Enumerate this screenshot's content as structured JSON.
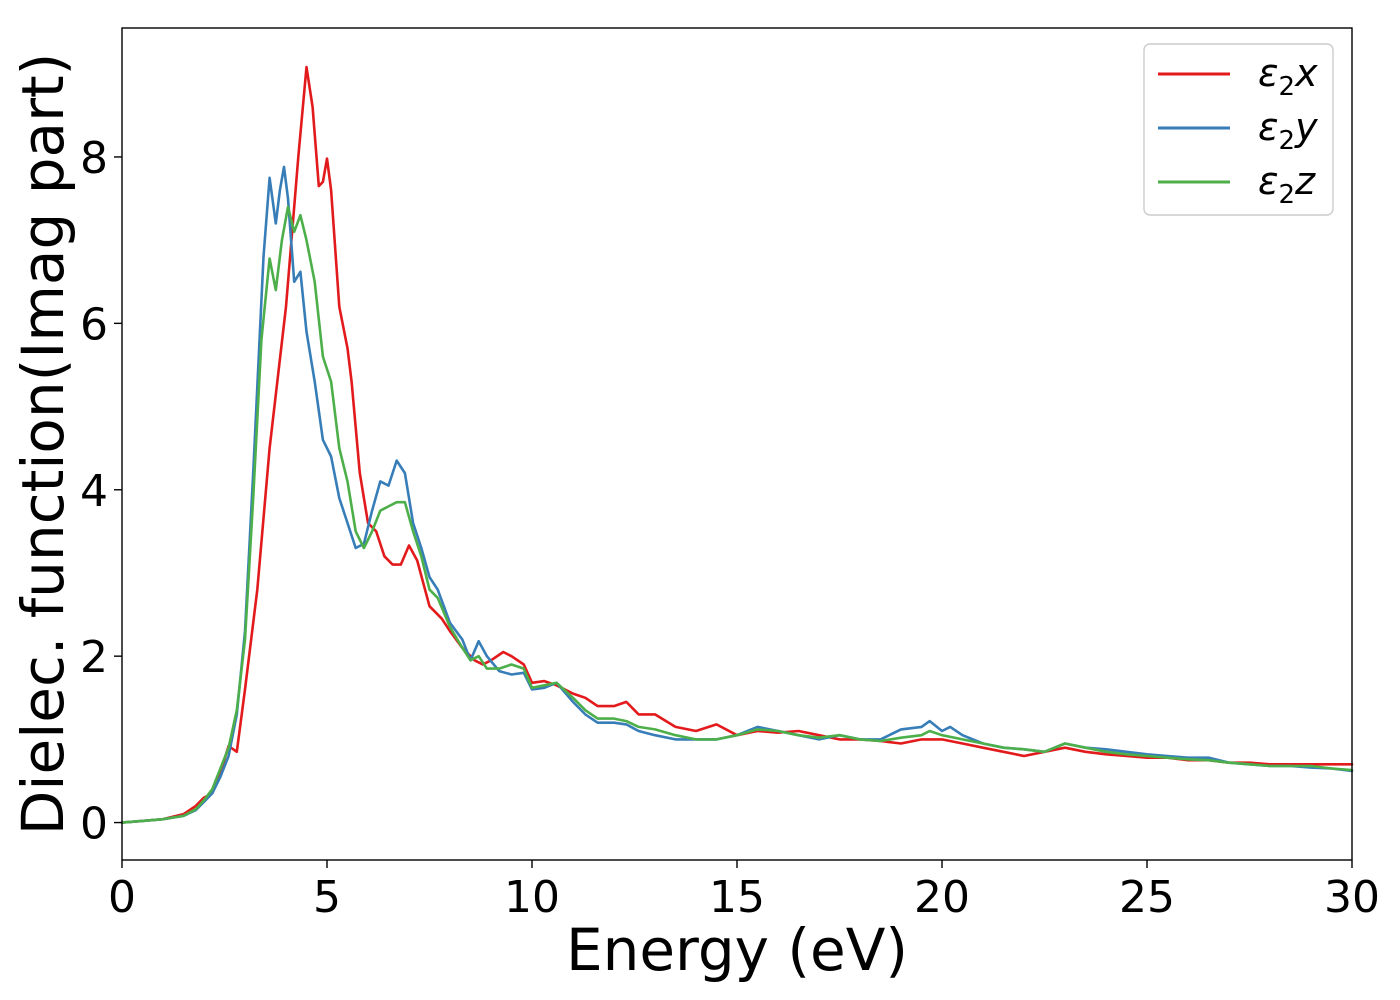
{
  "chart_data": {
    "type": "line",
    "xlabel": "Energy (eV)",
    "ylabel": "Dielec. function(Imag part)",
    "xlim": [
      0,
      30
    ],
    "ylim": [
      -0.45,
      9.55
    ],
    "xticks": [
      0,
      5,
      10,
      15,
      20,
      25,
      30
    ],
    "yticks": [
      0,
      2,
      4,
      6,
      8
    ],
    "grid": false,
    "legend_position": "top-right",
    "series": [
      {
        "name": "ε2x",
        "legend_base": "ε",
        "legend_sub": "2",
        "legend_tail": "x",
        "color": "#e31a1c",
        "points": [
          [
            0,
            0
          ],
          [
            0.5,
            0.02
          ],
          [
            1,
            0.04
          ],
          [
            1.5,
            0.1
          ],
          [
            1.8,
            0.2
          ],
          [
            2,
            0.3
          ],
          [
            2.2,
            0.35
          ],
          [
            2.4,
            0.6
          ],
          [
            2.6,
            0.92
          ],
          [
            2.8,
            0.85
          ],
          [
            3,
            1.6
          ],
          [
            3.3,
            2.8
          ],
          [
            3.6,
            4.5
          ],
          [
            4,
            6.2
          ],
          [
            4.3,
            8.0
          ],
          [
            4.5,
            9.08
          ],
          [
            4.65,
            8.6
          ],
          [
            4.8,
            7.65
          ],
          [
            4.9,
            7.7
          ],
          [
            5.0,
            7.98
          ],
          [
            5.1,
            7.6
          ],
          [
            5.3,
            6.2
          ],
          [
            5.5,
            5.7
          ],
          [
            5.6,
            5.3
          ],
          [
            5.8,
            4.2
          ],
          [
            6.0,
            3.6
          ],
          [
            6.2,
            3.5
          ],
          [
            6.4,
            3.2
          ],
          [
            6.6,
            3.1
          ],
          [
            6.8,
            3.1
          ],
          [
            7.0,
            3.33
          ],
          [
            7.2,
            3.15
          ],
          [
            7.5,
            2.6
          ],
          [
            7.8,
            2.45
          ],
          [
            8.0,
            2.3
          ],
          [
            8.3,
            2.1
          ],
          [
            8.6,
            1.95
          ],
          [
            8.8,
            1.9
          ],
          [
            9.0,
            1.95
          ],
          [
            9.3,
            2.05
          ],
          [
            9.5,
            2.0
          ],
          [
            9.8,
            1.9
          ],
          [
            10,
            1.68
          ],
          [
            10.3,
            1.7
          ],
          [
            10.6,
            1.65
          ],
          [
            11,
            1.55
          ],
          [
            11.3,
            1.5
          ],
          [
            11.6,
            1.4
          ],
          [
            12,
            1.4
          ],
          [
            12.3,
            1.45
          ],
          [
            12.6,
            1.3
          ],
          [
            13,
            1.3
          ],
          [
            13.5,
            1.15
          ],
          [
            14,
            1.1
          ],
          [
            14.5,
            1.18
          ],
          [
            15,
            1.05
          ],
          [
            15.5,
            1.1
          ],
          [
            16,
            1.08
          ],
          [
            16.5,
            1.1
          ],
          [
            17,
            1.05
          ],
          [
            17.5,
            1.0
          ],
          [
            18,
            1.0
          ],
          [
            18.5,
            0.98
          ],
          [
            19,
            0.95
          ],
          [
            19.5,
            1.0
          ],
          [
            20,
            1.0
          ],
          [
            20.5,
            0.95
          ],
          [
            21,
            0.9
          ],
          [
            21.5,
            0.85
          ],
          [
            22,
            0.8
          ],
          [
            22.5,
            0.85
          ],
          [
            23,
            0.9
          ],
          [
            23.5,
            0.85
          ],
          [
            24,
            0.82
          ],
          [
            24.5,
            0.8
          ],
          [
            25,
            0.78
          ],
          [
            25.5,
            0.78
          ],
          [
            26,
            0.75
          ],
          [
            26.5,
            0.75
          ],
          [
            27,
            0.72
          ],
          [
            27.5,
            0.72
          ],
          [
            28,
            0.7
          ],
          [
            28.5,
            0.7
          ],
          [
            29,
            0.7
          ],
          [
            29.5,
            0.7
          ],
          [
            30,
            0.7
          ]
        ]
      },
      {
        "name": "ε2y",
        "legend_base": "ε",
        "legend_sub": "2",
        "legend_tail": "y",
        "color": "#377eb8",
        "points": [
          [
            0,
            0
          ],
          [
            0.5,
            0.02
          ],
          [
            1,
            0.04
          ],
          [
            1.5,
            0.08
          ],
          [
            1.8,
            0.15
          ],
          [
            2,
            0.25
          ],
          [
            2.2,
            0.35
          ],
          [
            2.4,
            0.55
          ],
          [
            2.6,
            0.8
          ],
          [
            2.8,
            1.3
          ],
          [
            3,
            2.3
          ],
          [
            3.2,
            4.2
          ],
          [
            3.45,
            6.8
          ],
          [
            3.6,
            7.75
          ],
          [
            3.75,
            7.2
          ],
          [
            3.85,
            7.6
          ],
          [
            3.95,
            7.88
          ],
          [
            4.05,
            7.5
          ],
          [
            4.2,
            6.5
          ],
          [
            4.35,
            6.62
          ],
          [
            4.5,
            5.9
          ],
          [
            4.7,
            5.3
          ],
          [
            4.9,
            4.6
          ],
          [
            5.1,
            4.4
          ],
          [
            5.3,
            3.9
          ],
          [
            5.5,
            3.6
          ],
          [
            5.7,
            3.3
          ],
          [
            5.9,
            3.35
          ],
          [
            6.1,
            3.75
          ],
          [
            6.3,
            4.1
          ],
          [
            6.5,
            4.05
          ],
          [
            6.7,
            4.35
          ],
          [
            6.9,
            4.2
          ],
          [
            7.1,
            3.6
          ],
          [
            7.3,
            3.3
          ],
          [
            7.5,
            2.95
          ],
          [
            7.7,
            2.8
          ],
          [
            8.0,
            2.4
          ],
          [
            8.3,
            2.2
          ],
          [
            8.5,
            1.95
          ],
          [
            8.7,
            2.18
          ],
          [
            8.9,
            2.0
          ],
          [
            9.2,
            1.82
          ],
          [
            9.5,
            1.78
          ],
          [
            9.8,
            1.8
          ],
          [
            10,
            1.6
          ],
          [
            10.3,
            1.62
          ],
          [
            10.6,
            1.68
          ],
          [
            11,
            1.45
          ],
          [
            11.3,
            1.3
          ],
          [
            11.6,
            1.2
          ],
          [
            12,
            1.2
          ],
          [
            12.3,
            1.18
          ],
          [
            12.6,
            1.1
          ],
          [
            13,
            1.05
          ],
          [
            13.5,
            1.0
          ],
          [
            14,
            1.0
          ],
          [
            14.5,
            1.0
          ],
          [
            15,
            1.05
          ],
          [
            15.5,
            1.15
          ],
          [
            16,
            1.1
          ],
          [
            16.5,
            1.05
          ],
          [
            17,
            1.0
          ],
          [
            17.5,
            1.05
          ],
          [
            18,
            1.0
          ],
          [
            18.5,
            1.0
          ],
          [
            19,
            1.12
          ],
          [
            19.5,
            1.15
          ],
          [
            19.7,
            1.22
          ],
          [
            20,
            1.1
          ],
          [
            20.2,
            1.15
          ],
          [
            20.5,
            1.05
          ],
          [
            21,
            0.95
          ],
          [
            21.5,
            0.9
          ],
          [
            22,
            0.88
          ],
          [
            22.5,
            0.85
          ],
          [
            23,
            0.95
          ],
          [
            23.5,
            0.9
          ],
          [
            24,
            0.88
          ],
          [
            24.5,
            0.85
          ],
          [
            25,
            0.82
          ],
          [
            25.5,
            0.8
          ],
          [
            26,
            0.78
          ],
          [
            26.5,
            0.78
          ],
          [
            27,
            0.72
          ],
          [
            27.5,
            0.7
          ],
          [
            28,
            0.68
          ],
          [
            28.5,
            0.68
          ],
          [
            29,
            0.66
          ],
          [
            29.5,
            0.65
          ],
          [
            30,
            0.62
          ]
        ]
      },
      {
        "name": "ε2z",
        "legend_base": "ε",
        "legend_sub": "2",
        "legend_tail": "z",
        "color": "#4daf4a",
        "points": [
          [
            0,
            0
          ],
          [
            0.5,
            0.02
          ],
          [
            1,
            0.04
          ],
          [
            1.5,
            0.08
          ],
          [
            1.8,
            0.16
          ],
          [
            2,
            0.27
          ],
          [
            2.2,
            0.4
          ],
          [
            2.4,
            0.65
          ],
          [
            2.6,
            0.9
          ],
          [
            2.8,
            1.35
          ],
          [
            3,
            2.2
          ],
          [
            3.2,
            3.9
          ],
          [
            3.4,
            5.8
          ],
          [
            3.6,
            6.78
          ],
          [
            3.75,
            6.4
          ],
          [
            3.9,
            7.0
          ],
          [
            4.05,
            7.4
          ],
          [
            4.2,
            7.1
          ],
          [
            4.35,
            7.3
          ],
          [
            4.5,
            7.0
          ],
          [
            4.7,
            6.5
          ],
          [
            4.9,
            5.6
          ],
          [
            5.1,
            5.3
          ],
          [
            5.3,
            4.5
          ],
          [
            5.5,
            4.1
          ],
          [
            5.7,
            3.5
          ],
          [
            5.9,
            3.3
          ],
          [
            6.1,
            3.5
          ],
          [
            6.3,
            3.75
          ],
          [
            6.5,
            3.8
          ],
          [
            6.7,
            3.85
          ],
          [
            6.9,
            3.85
          ],
          [
            7.1,
            3.5
          ],
          [
            7.3,
            3.2
          ],
          [
            7.5,
            2.8
          ],
          [
            7.7,
            2.7
          ],
          [
            8.0,
            2.35
          ],
          [
            8.3,
            2.1
          ],
          [
            8.5,
            1.95
          ],
          [
            8.7,
            2.0
          ],
          [
            8.9,
            1.85
          ],
          [
            9.2,
            1.85
          ],
          [
            9.5,
            1.9
          ],
          [
            9.8,
            1.85
          ],
          [
            10,
            1.62
          ],
          [
            10.3,
            1.65
          ],
          [
            10.6,
            1.68
          ],
          [
            11,
            1.5
          ],
          [
            11.3,
            1.35
          ],
          [
            11.6,
            1.25
          ],
          [
            12,
            1.25
          ],
          [
            12.3,
            1.22
          ],
          [
            12.6,
            1.15
          ],
          [
            13,
            1.12
          ],
          [
            13.5,
            1.05
          ],
          [
            14,
            1.0
          ],
          [
            14.5,
            1.0
          ],
          [
            15,
            1.05
          ],
          [
            15.5,
            1.12
          ],
          [
            16,
            1.1
          ],
          [
            16.5,
            1.05
          ],
          [
            17,
            1.02
          ],
          [
            17.5,
            1.05
          ],
          [
            18,
            1.0
          ],
          [
            18.5,
            0.98
          ],
          [
            19,
            1.02
          ],
          [
            19.5,
            1.05
          ],
          [
            19.7,
            1.1
          ],
          [
            20,
            1.05
          ],
          [
            20.5,
            1.0
          ],
          [
            21,
            0.95
          ],
          [
            21.5,
            0.9
          ],
          [
            22,
            0.88
          ],
          [
            22.5,
            0.85
          ],
          [
            23,
            0.95
          ],
          [
            23.5,
            0.9
          ],
          [
            24,
            0.85
          ],
          [
            24.5,
            0.82
          ],
          [
            25,
            0.8
          ],
          [
            25.5,
            0.78
          ],
          [
            26,
            0.76
          ],
          [
            26.5,
            0.75
          ],
          [
            27,
            0.72
          ],
          [
            27.5,
            0.7
          ],
          [
            28,
            0.68
          ],
          [
            28.5,
            0.68
          ],
          [
            29,
            0.68
          ],
          [
            29.5,
            0.65
          ],
          [
            30,
            0.63
          ]
        ]
      }
    ]
  }
}
